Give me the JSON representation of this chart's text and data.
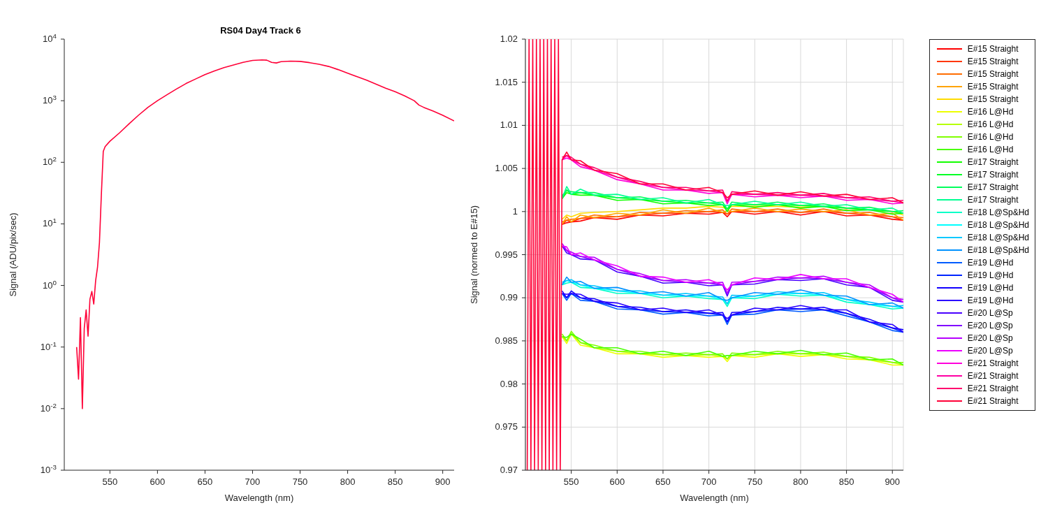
{
  "chart_data": [
    {
      "type": "line",
      "title": "RS04 Day4 Track 6",
      "xlabel": "Wavelength (nm)",
      "ylabel": "Signal (ADU/pix/sec)",
      "log": "y",
      "x": [
        515,
        517,
        519,
        521,
        523,
        525,
        527,
        529,
        531,
        533,
        535,
        537,
        539,
        541,
        543,
        545,
        550,
        560,
        570,
        580,
        590,
        600,
        610,
        620,
        630,
        640,
        650,
        660,
        670,
        680,
        690,
        700,
        710,
        715,
        720,
        725,
        730,
        740,
        750,
        760,
        770,
        780,
        790,
        800,
        810,
        820,
        830,
        840,
        850,
        860,
        870,
        875,
        880,
        890,
        900,
        912
      ],
      "series": [
        {
          "color": "#ff0037",
          "values": [
            0.1,
            0.03,
            0.3,
            0.01,
            0.2,
            0.4,
            0.15,
            0.6,
            0.8,
            0.5,
            1.2,
            2,
            5,
            30,
            150,
            180,
            220,
            300,
            420,
            580,
            780,
            1000,
            1250,
            1550,
            1900,
            2250,
            2650,
            3050,
            3450,
            3800,
            4200,
            4500,
            4600,
            4550,
            4200,
            4100,
            4300,
            4400,
            4350,
            4150,
            3900,
            3600,
            3200,
            2800,
            2450,
            2150,
            1850,
            1600,
            1400,
            1200,
            1000,
            850,
            780,
            680,
            580,
            470
          ]
        }
      ],
      "xlim": [
        502,
        912
      ],
      "xticks": [
        550,
        600,
        650,
        700,
        750,
        800,
        850,
        900
      ],
      "ylim": [
        0.001,
        10000
      ],
      "yticks": [
        {
          "value": 0.001,
          "label": "10$^{-3}$"
        },
        {
          "value": 0.01,
          "label": "10$^{-2}$"
        },
        {
          "value": 0.1,
          "label": "10$^{-1}$"
        },
        {
          "value": 1,
          "label": "10$^{0}$"
        },
        {
          "value": 10,
          "label": "10$^{1}$"
        },
        {
          "value": 100,
          "label": "10$^{2}$"
        },
        {
          "value": 1000,
          "label": "10$^{3}$"
        },
        {
          "value": 10000,
          "label": "10$^{4}$"
        }
      ]
    },
    {
      "type": "line",
      "xlabel": "Wavelength (nm)",
      "ylabel": "Signal (normed to E#15)",
      "grid": true,
      "legend": "right",
      "x": [
        540,
        545,
        550,
        560,
        575,
        600,
        625,
        650,
        675,
        700,
        715,
        720,
        725,
        750,
        775,
        800,
        825,
        850,
        875,
        900,
        912
      ],
      "series": [
        {
          "name": "E#15 Straight",
          "color": "#ff0000",
          "values": [
            0.9985,
            0.9987,
            0.9988,
            0.9989,
            0.9993,
            0.9991,
            0.9996,
            0.9995,
            0.9998,
            0.9997,
            0.9999,
            0.9994,
            1.0,
            0.9997,
            1.0,
            0.9996,
            1.0,
            0.9995,
            0.9996,
            0.9991,
            0.999
          ]
        },
        {
          "name": "E#15 Straight",
          "color": "#ff3700",
          "values": [
            0.9985,
            0.999,
            0.9988,
            0.9992,
            0.9993,
            0.9994,
            0.9996,
            0.9998,
            0.9998,
            1.0,
            0.9999,
            0.9997,
            1.0,
            1.0,
            1.0,
            0.9999,
            1.0,
            0.9998,
            0.9996,
            0.9994,
            0.999
          ]
        },
        {
          "name": "E#15 Straight",
          "color": "#ff6d00",
          "values": [
            0.9988,
            0.999,
            0.9991,
            0.9992,
            0.9996,
            0.9994,
            0.9999,
            0.9998,
            1.0001,
            1.0,
            1.0002,
            0.9997,
            1.0003,
            1.0,
            1.0003,
            0.9999,
            1.0003,
            0.9998,
            0.9999,
            0.9994,
            0.9993
          ]
        },
        {
          "name": "E#15 Straight",
          "color": "#ffa400",
          "values": [
            0.9985,
            0.9994,
            0.9988,
            0.9996,
            0.9993,
            0.9998,
            0.9996,
            1.0002,
            0.9998,
            1.0004,
            0.9999,
            1.0001,
            1.0,
            1.0004,
            1.0,
            1.0003,
            1.0,
            1.0002,
            0.9996,
            0.9998,
            0.999
          ]
        },
        {
          "name": "E#15 Straight",
          "color": "#ffdb00",
          "values": [
            0.9991,
            0.9996,
            0.9994,
            0.9998,
            0.9999,
            1.0,
            1.0002,
            1.0004,
            1.0004,
            1.0006,
            1.0005,
            1.0003,
            1.0006,
            1.0006,
            1.0006,
            1.0005,
            1.0006,
            1.0004,
            1.0002,
            1.0,
            0.9996
          ]
        },
        {
          "name": "E#16 L@Hd",
          "color": "#edff00",
          "values": [
            0.9855,
            0.9847,
            0.9858,
            0.9845,
            0.9842,
            0.9835,
            0.9835,
            0.9831,
            0.9833,
            0.9831,
            0.9832,
            0.9826,
            0.9833,
            0.9831,
            0.9835,
            0.9832,
            0.9834,
            0.9829,
            0.9828,
            0.9822,
            0.9822
          ]
        },
        {
          "name": "E#16 L@Hd",
          "color": "#b6ff00",
          "values": [
            0.9855,
            0.985,
            0.9858,
            0.9848,
            0.9842,
            0.9838,
            0.9835,
            0.9834,
            0.9833,
            0.9834,
            0.9832,
            0.9829,
            0.9833,
            0.9834,
            0.9835,
            0.9835,
            0.9834,
            0.9832,
            0.9828,
            0.9825,
            0.9822
          ]
        },
        {
          "name": "E#16 L@Hd",
          "color": "#80ff00",
          "values": [
            0.9858,
            0.985,
            0.9861,
            0.9848,
            0.9845,
            0.9838,
            0.9838,
            0.9834,
            0.9836,
            0.9834,
            0.9835,
            0.9829,
            0.9836,
            0.9834,
            0.9838,
            0.9835,
            0.9837,
            0.9832,
            0.9831,
            0.9825,
            0.9825
          ]
        },
        {
          "name": "E#16 L@Hd",
          "color": "#49ff00",
          "values": [
            0.9855,
            0.9854,
            0.9858,
            0.9852,
            0.9842,
            0.9842,
            0.9835,
            0.9838,
            0.9833,
            0.9838,
            0.9832,
            0.9833,
            0.9833,
            0.9838,
            0.9835,
            0.9839,
            0.9834,
            0.9836,
            0.9828,
            0.9829,
            0.9822
          ]
        },
        {
          "name": "E#17 Straight",
          "color": "#12ff00",
          "values": [
            1.0015,
            1.0022,
            1.002,
            1.0019,
            1.0019,
            1.0013,
            1.0014,
            1.0009,
            1.001,
            1.0007,
            1.0008,
            1.0,
            1.0008,
            1.0005,
            1.0008,
            1.0004,
            1.0006,
            1.0001,
            1.0002,
            0.9997,
            0.9998
          ]
        },
        {
          "name": "E#17 Straight",
          "color": "#00ff24",
          "values": [
            1.0015,
            1.0025,
            1.002,
            1.0022,
            1.0019,
            1.0016,
            1.0014,
            1.0012,
            1.001,
            1.001,
            1.0008,
            1.0003,
            1.0008,
            1.0008,
            1.0008,
            1.0007,
            1.0006,
            1.0004,
            1.0002,
            1.0,
            0.9998
          ]
        },
        {
          "name": "E#17 Straight",
          "color": "#00ff5b",
          "values": [
            1.0018,
            1.0025,
            1.0023,
            1.0022,
            1.0022,
            1.0016,
            1.0017,
            1.0012,
            1.0013,
            1.001,
            1.0011,
            1.0003,
            1.0011,
            1.0008,
            1.0011,
            1.0007,
            1.0009,
            1.0004,
            1.0005,
            1.0,
            1.0001
          ]
        },
        {
          "name": "E#17 Straight",
          "color": "#00ff92",
          "values": [
            1.0015,
            1.0029,
            1.002,
            1.0026,
            1.0019,
            1.002,
            1.0014,
            1.0016,
            1.001,
            1.0014,
            1.0008,
            1.0007,
            1.0008,
            1.0012,
            1.0008,
            1.0011,
            1.0006,
            1.0008,
            1.0002,
            1.0004,
            0.9998
          ]
        },
        {
          "name": "E#18 L@Sp&Hd",
          "color": "#00ffc8",
          "values": [
            0.9915,
            0.9917,
            0.9918,
            0.9912,
            0.9911,
            0.9905,
            0.9905,
            0.99,
            0.9902,
            0.9899,
            0.9898,
            0.989,
            0.99,
            0.9899,
            0.9904,
            0.9902,
            0.9903,
            0.9895,
            0.9892,
            0.9887,
            0.9888
          ]
        },
        {
          "name": "E#18 L@Sp&Hd",
          "color": "#00ffff",
          "values": [
            0.9915,
            0.992,
            0.9918,
            0.9915,
            0.9911,
            0.9908,
            0.9905,
            0.9903,
            0.9902,
            0.9902,
            0.9898,
            0.9893,
            0.99,
            0.9902,
            0.9904,
            0.9905,
            0.9903,
            0.9898,
            0.9892,
            0.989,
            0.9888
          ]
        },
        {
          "name": "E#18 L@Sp&Hd",
          "color": "#00c8ff",
          "values": [
            0.9918,
            0.992,
            0.9921,
            0.9915,
            0.9914,
            0.9908,
            0.9908,
            0.9903,
            0.9905,
            0.9902,
            0.9901,
            0.9893,
            0.9903,
            0.9902,
            0.9907,
            0.9905,
            0.9906,
            0.9898,
            0.9895,
            0.989,
            0.9891
          ]
        },
        {
          "name": "E#18 L@Sp&Hd",
          "color": "#0092ff",
          "values": [
            0.9915,
            0.9924,
            0.9918,
            0.9919,
            0.9911,
            0.9912,
            0.9905,
            0.9907,
            0.9902,
            0.9906,
            0.9898,
            0.9897,
            0.99,
            0.9906,
            0.9904,
            0.9909,
            0.9903,
            0.9902,
            0.9892,
            0.9894,
            0.9888
          ]
        },
        {
          "name": "E#19 L@Hd",
          "color": "#005bff",
          "values": [
            0.9905,
            0.9897,
            0.9905,
            0.9897,
            0.9896,
            0.9887,
            0.9886,
            0.9881,
            0.9883,
            0.9879,
            0.988,
            0.9869,
            0.988,
            0.9881,
            0.9886,
            0.9884,
            0.9886,
            0.9879,
            0.9872,
            0.9862,
            0.986
          ]
        },
        {
          "name": "E#19 L@Hd",
          "color": "#0024ff",
          "values": [
            0.9905,
            0.99,
            0.9905,
            0.99,
            0.9896,
            0.989,
            0.9886,
            0.9884,
            0.9883,
            0.9882,
            0.988,
            0.9872,
            0.988,
            0.9884,
            0.9886,
            0.9887,
            0.9886,
            0.9882,
            0.9872,
            0.9865,
            0.986
          ]
        },
        {
          "name": "E#19 L@Hd",
          "color": "#1200ff",
          "values": [
            0.9908,
            0.99,
            0.9908,
            0.99,
            0.9899,
            0.989,
            0.9889,
            0.9884,
            0.9886,
            0.9882,
            0.9883,
            0.9872,
            0.9883,
            0.9884,
            0.9889,
            0.9887,
            0.9889,
            0.9882,
            0.9875,
            0.9865,
            0.9863
          ]
        },
        {
          "name": "E#19 L@Hd",
          "color": "#2a00ff",
          "values": [
            0.9905,
            0.9904,
            0.9905,
            0.9904,
            0.9896,
            0.9894,
            0.9886,
            0.9888,
            0.9883,
            0.9886,
            0.988,
            0.9876,
            0.988,
            0.9888,
            0.9886,
            0.9891,
            0.9886,
            0.9886,
            0.9872,
            0.9869,
            0.986
          ]
        },
        {
          "name": "E#20 L@Sp",
          "color": "#4900ff",
          "values": [
            0.996,
            0.9952,
            0.995,
            0.9945,
            0.9944,
            0.993,
            0.9925,
            0.9917,
            0.9918,
            0.9914,
            0.9915,
            0.9902,
            0.9915,
            0.9916,
            0.9921,
            0.992,
            0.9922,
            0.9915,
            0.9912,
            0.9897,
            0.9895
          ]
        },
        {
          "name": "E#20 L@Sp",
          "color": "#8000ff",
          "values": [
            0.996,
            0.9955,
            0.995,
            0.9948,
            0.9944,
            0.9933,
            0.9925,
            0.992,
            0.9918,
            0.9917,
            0.9915,
            0.9905,
            0.9915,
            0.9919,
            0.9921,
            0.9923,
            0.9922,
            0.9918,
            0.9912,
            0.99,
            0.9895
          ]
        },
        {
          "name": "E#20 L@Sp",
          "color": "#b600ff",
          "values": [
            0.9963,
            0.9955,
            0.9953,
            0.9948,
            0.9947,
            0.9933,
            0.9928,
            0.992,
            0.9921,
            0.9917,
            0.9918,
            0.9905,
            0.9918,
            0.9919,
            0.9924,
            0.9923,
            0.9925,
            0.9918,
            0.9915,
            0.99,
            0.9898
          ]
        },
        {
          "name": "E#20 L@Sp",
          "color": "#ed00ff",
          "values": [
            0.996,
            0.9959,
            0.995,
            0.9952,
            0.9944,
            0.9937,
            0.9925,
            0.9924,
            0.9918,
            0.9921,
            0.9915,
            0.9909,
            0.9915,
            0.9923,
            0.9921,
            0.9927,
            0.9922,
            0.9922,
            0.9912,
            0.9904,
            0.9895
          ]
        },
        {
          "name": "E#21 Straight",
          "color": "#ff00db",
          "values": [
            1.006,
            1.0062,
            1.006,
            1.0052,
            1.0048,
            1.0037,
            1.0032,
            1.0025,
            1.0025,
            1.0021,
            1.0022,
            1.0009,
            1.002,
            1.0017,
            1.0019,
            1.0016,
            1.0018,
            1.0013,
            1.0014,
            1.0009,
            1.001
          ]
        },
        {
          "name": "E#21 Straight",
          "color": "#ff00a4",
          "values": [
            1.006,
            1.0065,
            1.006,
            1.0055,
            1.0048,
            1.004,
            1.0032,
            1.0028,
            1.0025,
            1.0024,
            1.0022,
            1.0012,
            1.002,
            1.002,
            1.0019,
            1.0019,
            1.0018,
            1.0016,
            1.0014,
            1.0012,
            1.001
          ]
        },
        {
          "name": "E#21 Straight",
          "color": "#ff006d",
          "values": [
            1.0063,
            1.0065,
            1.0063,
            1.0055,
            1.0051,
            1.004,
            1.0035,
            1.0028,
            1.0028,
            1.0024,
            1.0025,
            1.0012,
            1.0023,
            1.002,
            1.0022,
            1.0019,
            1.0021,
            1.0016,
            1.0017,
            1.0012,
            1.0013
          ]
        },
        {
          "name": "E#21 Straight",
          "color": "#ff0037",
          "x": [
            502,
            504,
            506,
            508,
            510,
            512,
            514,
            516,
            518,
            520,
            522,
            524,
            526,
            528,
            530,
            532,
            534,
            536,
            538,
            540,
            545,
            550,
            560,
            575,
            600,
            625,
            650,
            675,
            700,
            715,
            720,
            725,
            750,
            775,
            800,
            825,
            850,
            875,
            900,
            912
          ],
          "values": [
            0.97,
            1.02,
            0.97,
            1.02,
            0.97,
            1.02,
            0.97,
            1.02,
            0.97,
            1.02,
            0.97,
            1.02,
            0.97,
            1.02,
            0.97,
            1.02,
            0.97,
            1.02,
            0.97,
            1.006,
            1.0069,
            1.006,
            1.0059,
            1.0048,
            1.0044,
            1.0032,
            1.0032,
            1.0025,
            1.0028,
            1.0022,
            1.0016,
            1.002,
            1.0024,
            1.0019,
            1.0023,
            1.0018,
            1.002,
            1.0014,
            1.0016,
            1.001
          ]
        }
      ],
      "xlim": [
        500,
        912
      ],
      "xticks": [
        550,
        600,
        650,
        700,
        750,
        800,
        850,
        900
      ],
      "ylim": [
        0.97,
        1.02
      ],
      "yticks": [
        0.97,
        0.975,
        0.98,
        0.985,
        0.99,
        0.995,
        1,
        1.005,
        1.01,
        1.015,
        1.02
      ]
    }
  ]
}
